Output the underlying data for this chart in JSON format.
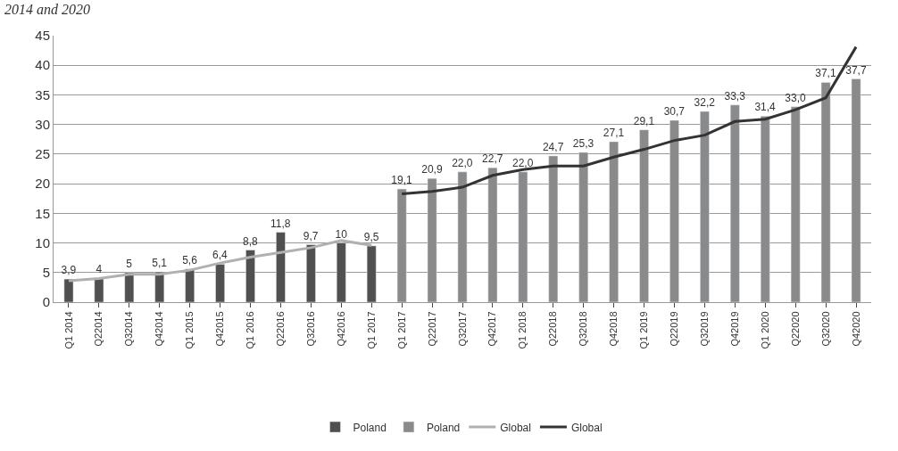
{
  "chart_data": {
    "type": "bar",
    "title": "2014 and 2020",
    "categories": [
      "Q1 2014",
      "Q22014",
      "Q32014",
      "Q42014",
      "Q1 2015",
      "Q42015",
      "Q1 2016",
      "Q22016",
      "Q32016",
      "Q42016",
      "Q1 2017",
      "Q1 2017",
      "Q22017",
      "Q32017",
      "Q42017",
      "Q1 2018",
      "Q22018",
      "Q32018",
      "Q42018",
      "Q1 2019",
      "Q22019",
      "Q32019",
      "Q42019",
      "Q1 2020",
      "Q22020",
      "Q32020",
      "Q42020"
    ],
    "series": [
      {
        "name": "Poland",
        "color": "#505050",
        "values": [
          3.9,
          4,
          5,
          5.1,
          5.6,
          6.4,
          8.8,
          11.8,
          9.7,
          10,
          9.5,
          null,
          null,
          null,
          null,
          null,
          null,
          null,
          null,
          null,
          null,
          null,
          null,
          null,
          null,
          null,
          null
        ],
        "value_labels": [
          "3,9",
          "4",
          "5",
          "5,1",
          "5,6",
          "6,4",
          "8,8",
          "11,8",
          "9,7",
          "10",
          "9,5",
          null,
          null,
          null,
          null,
          null,
          null,
          null,
          null,
          null,
          null,
          null,
          null,
          null,
          null,
          null,
          null
        ]
      },
      {
        "name": "Poland",
        "color": "#8a8a8a",
        "values": [
          null,
          null,
          null,
          null,
          null,
          null,
          null,
          null,
          null,
          null,
          null,
          19.1,
          20.9,
          22.0,
          22.7,
          22.0,
          24.7,
          25.3,
          27.1,
          29.1,
          30.7,
          32.2,
          33.3,
          31.4,
          33.0,
          37.1,
          37.7
        ],
        "value_labels": [
          null,
          null,
          null,
          null,
          null,
          null,
          null,
          null,
          null,
          null,
          null,
          "19,1",
          "20,9",
          "22,0",
          "22,7",
          "22,0",
          "24,7",
          "25,3",
          "27,1",
          "29,1",
          "30,7",
          "32,2",
          "33,3",
          "31,4",
          "33,0",
          "37,1",
          "37,7"
        ]
      },
      {
        "name": "Global",
        "type": "line",
        "color": "#b0b0b0",
        "values": [
          3.6,
          4.0,
          4.7,
          4.7,
          5.4,
          6.6,
          7.6,
          8.4,
          9.2,
          10.4,
          9.6,
          null,
          null,
          null,
          null,
          null,
          null,
          null,
          null,
          null,
          null,
          null,
          null,
          null,
          null,
          null,
          null
        ]
      },
      {
        "name": "Global",
        "type": "line",
        "color": "#333333",
        "values": [
          null,
          null,
          null,
          null,
          null,
          null,
          null,
          null,
          null,
          null,
          null,
          18.3,
          18.7,
          19.4,
          21.4,
          22.4,
          23.0,
          23.0,
          24.5,
          25.8,
          27.3,
          28.2,
          30.5,
          30.9,
          32.5,
          34.5,
          43.1
        ]
      }
    ],
    "ylim": [
      0,
      45
    ],
    "yticks": [
      0,
      5,
      10,
      15,
      20,
      25,
      30,
      35,
      40,
      45
    ],
    "grid": "y",
    "legend": "bottom"
  }
}
